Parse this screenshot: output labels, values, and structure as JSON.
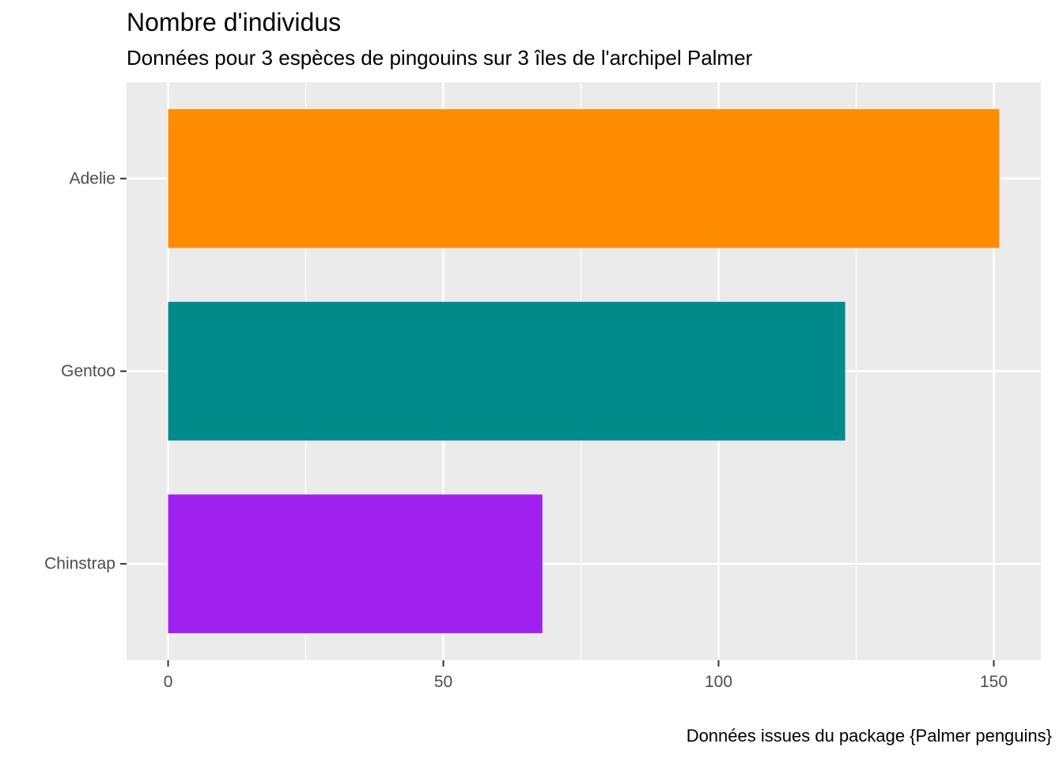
{
  "chart_data": {
    "type": "bar",
    "orientation": "horizontal",
    "title": "Nombre d'individus",
    "subtitle": "Données pour 3 espèces de pingouins sur 3 îles de l'archipel Palmer",
    "caption": "Données issues du package {Palmer penguins}",
    "categories": [
      "Adelie",
      "Gentoo",
      "Chinstrap"
    ],
    "values": [
      151,
      123,
      68
    ],
    "colors": [
      "#FF8C00",
      "#008B8B",
      "#A020F0"
    ],
    "xlabel": "",
    "ylabel": "",
    "xlim": [
      -7.55,
      158.55
    ],
    "x_ticks": [
      0,
      50,
      100,
      150
    ],
    "x_tick_labels": [
      "0",
      "50",
      "100",
      "150"
    ],
    "panel_background": "#EBEBEB",
    "grid": true,
    "legend": "none"
  }
}
